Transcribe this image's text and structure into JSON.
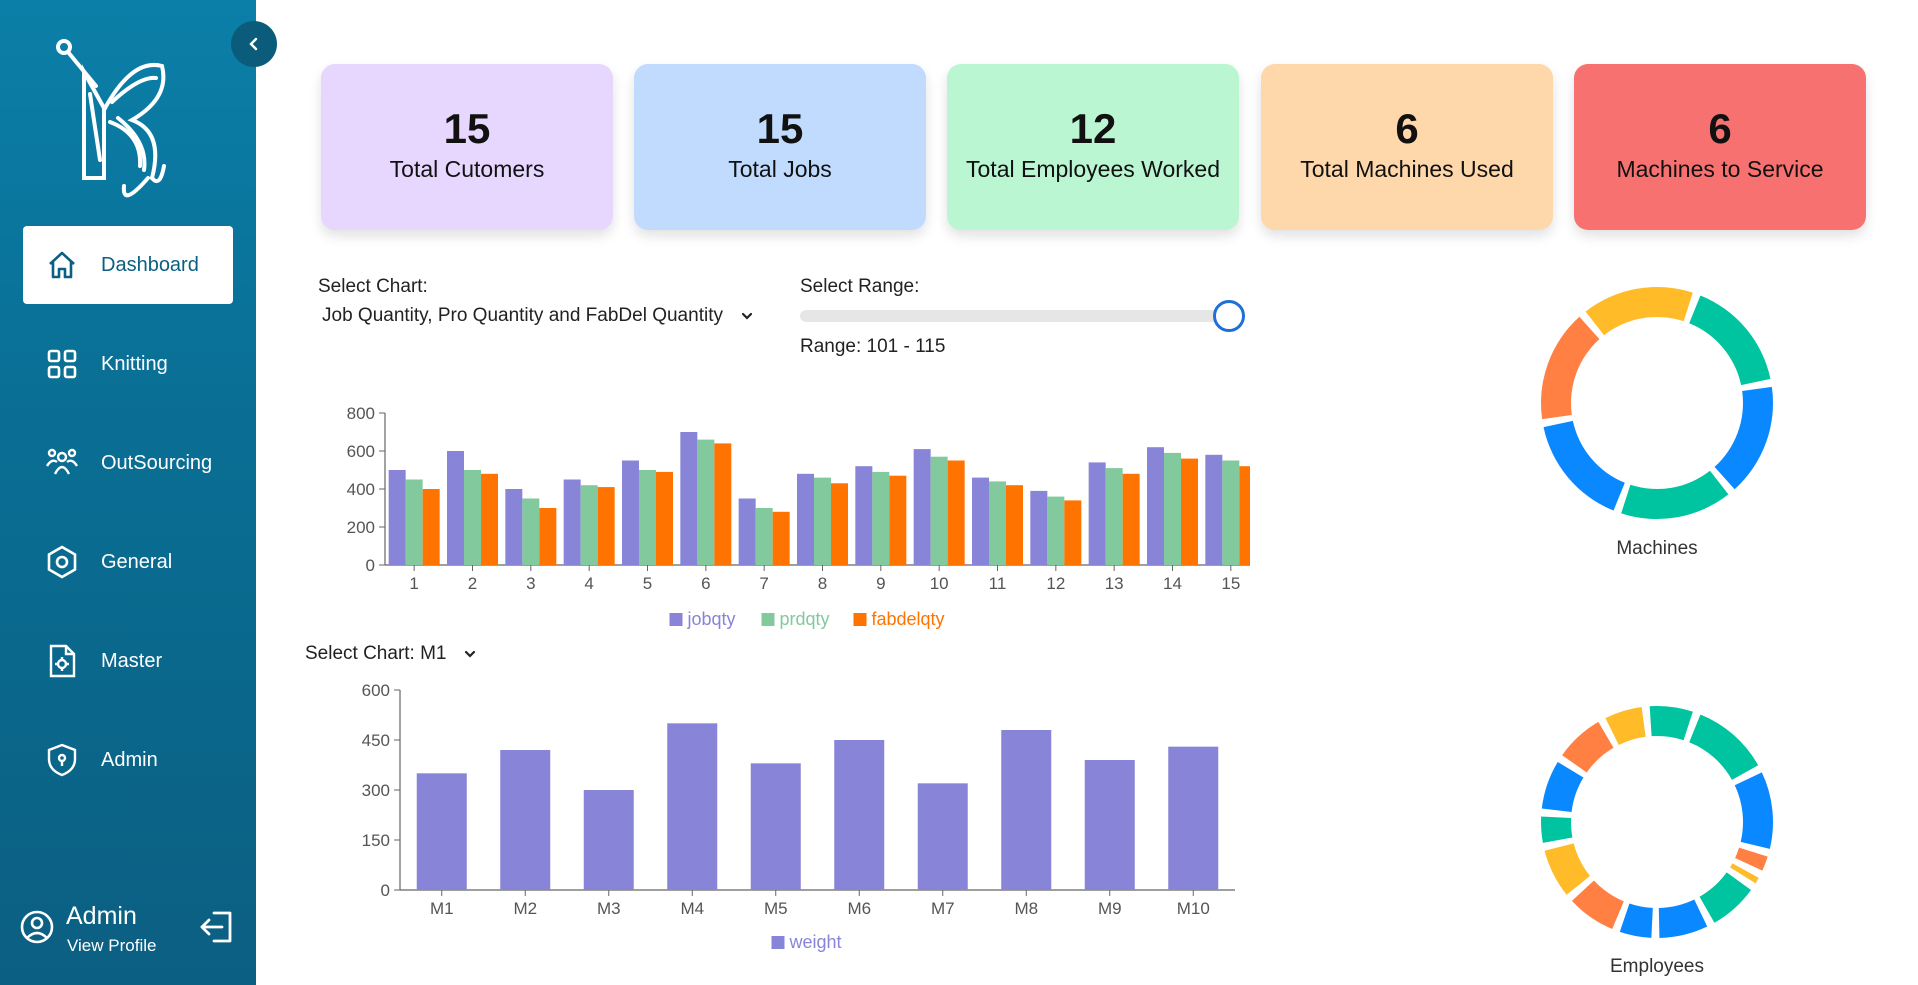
{
  "sidebar": {
    "items": [
      {
        "label": "Dashboard",
        "icon": "home-icon",
        "active": true
      },
      {
        "label": "Knitting",
        "icon": "grid-icon",
        "active": false
      },
      {
        "label": "OutSourcing",
        "icon": "users-icon",
        "active": false
      },
      {
        "label": "General",
        "icon": "hexagon-icon",
        "active": false
      },
      {
        "label": "Master",
        "icon": "file-gear-icon",
        "active": false
      },
      {
        "label": "Admin",
        "icon": "shield-icon",
        "active": false
      }
    ],
    "profile": {
      "name": "Admin",
      "link": "View Profile"
    }
  },
  "cards": [
    {
      "value": "15",
      "label": "Total Cutomers",
      "color": "#e7d6fe"
    },
    {
      "value": "15",
      "label": "Total Jobs",
      "color": "#c0dbfd"
    },
    {
      "value": "12",
      "label": "Total Employees Worked",
      "color": "#bbf6d2"
    },
    {
      "value": "6",
      "label": "Total Machines Used",
      "color": "#fed7aa"
    },
    {
      "value": "6",
      "label": "Machines to Service",
      "color": "#f87171"
    }
  ],
  "controls": {
    "select_chart_label": "Select Chart:",
    "select_chart_value": "Job Quantity, Pro Quantity and FabDel Quantity",
    "select_range_label": "Select Range:",
    "range_text": "Range: 101 - 115",
    "range_fraction": 1.0,
    "select_chart2_label": "Select Chart: M1"
  },
  "colors": {
    "purple": "#8884d8",
    "green": "#82ca9d",
    "orange": "#ff7300",
    "blue": "#0a88ff",
    "teal": "#00c49f",
    "yellow": "#ffbb28",
    "coral": "#ff8042"
  },
  "chart_data": [
    {
      "type": "bar",
      "categories": [
        "1",
        "2",
        "3",
        "4",
        "5",
        "6",
        "7",
        "8",
        "9",
        "10",
        "11",
        "12",
        "13",
        "14",
        "15"
      ],
      "series": [
        {
          "name": "jobqty",
          "values": [
            500,
            600,
            400,
            450,
            550,
            700,
            350,
            480,
            520,
            610,
            460,
            390,
            540,
            620,
            580
          ]
        },
        {
          "name": "prdqty",
          "values": [
            450,
            500,
            350,
            420,
            500,
            660,
            300,
            460,
            490,
            570,
            440,
            360,
            510,
            590,
            550
          ]
        },
        {
          "name": "fabdelqty",
          "values": [
            400,
            480,
            300,
            410,
            490,
            640,
            280,
            430,
            470,
            550,
            420,
            340,
            480,
            560,
            520
          ]
        }
      ],
      "ylim": [
        0,
        800
      ],
      "yticks": [
        0,
        200,
        400,
        600,
        800
      ],
      "legend": "bottom"
    },
    {
      "type": "bar",
      "categories": [
        "M1",
        "M2",
        "M3",
        "M4",
        "M5",
        "M6",
        "M7",
        "M8",
        "M9",
        "M10"
      ],
      "series": [
        {
          "name": "weight",
          "values": [
            350,
            420,
            300,
            500,
            380,
            450,
            320,
            480,
            390,
            430
          ]
        }
      ],
      "ylim": [
        0,
        600
      ],
      "yticks": [
        0,
        150,
        300,
        450,
        600
      ],
      "legend": "bottom"
    },
    {
      "type": "pie",
      "title": "Machines",
      "values": [
        1,
        1,
        1,
        1,
        1,
        1
      ],
      "colors": [
        "#00c49f",
        "#0a88ff",
        "#00c49f",
        "#0a88ff",
        "#ff8042",
        "#ffbb28"
      ]
    },
    {
      "type": "pie",
      "title": "Employees",
      "values": [
        1.5,
        1.5,
        0.4,
        0.25,
        1,
        1,
        0.7,
        1,
        1,
        0.6,
        1,
        1,
        0.8,
        0.9
      ],
      "colors": [
        "#00c49f",
        "#0a88ff",
        "#ff8042",
        "#ffbb28",
        "#00c49f",
        "#0a88ff",
        "#0a88ff",
        "#ff8042",
        "#ffbb28",
        "#00c49f",
        "#0a88ff",
        "#ff8042",
        "#ffbb28",
        "#00c49f"
      ]
    }
  ]
}
